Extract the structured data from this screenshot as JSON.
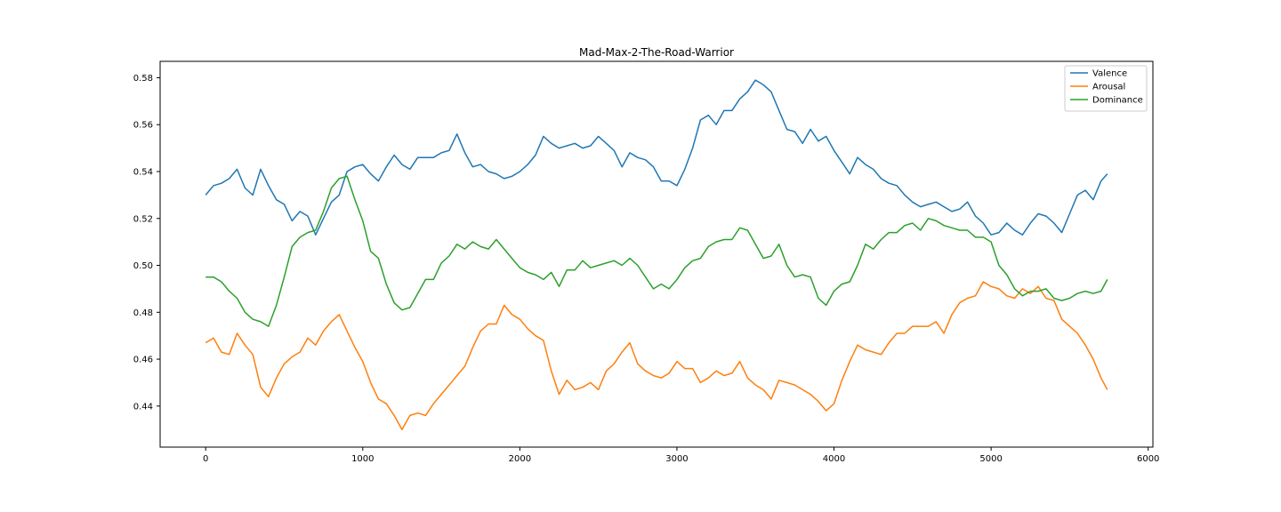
{
  "chart_data": {
    "type": "line",
    "title": "Mad-Max-2-The-Road-Warrior",
    "xlabel": "",
    "ylabel": "",
    "xlim": [
      -290,
      6030
    ],
    "ylim": [
      0.4225,
      0.587
    ],
    "xticks": [
      0,
      1000,
      2000,
      3000,
      4000,
      5000,
      6000
    ],
    "yticks": [
      0.44,
      0.46,
      0.48,
      0.5,
      0.52,
      0.54,
      0.56,
      0.58
    ],
    "ytick_labels": [
      "0.44",
      "0.46",
      "0.48",
      "0.50",
      "0.52",
      "0.54",
      "0.56",
      "0.58"
    ],
    "grid": false,
    "legend_position": "top-right",
    "series": [
      {
        "name": "Valence",
        "color": "#1f77b4",
        "x": [
          0,
          50,
          100,
          150,
          200,
          250,
          300,
          350,
          400,
          450,
          500,
          550,
          600,
          650,
          700,
          750,
          800,
          850,
          900,
          950,
          1000,
          1050,
          1100,
          1150,
          1200,
          1250,
          1300,
          1350,
          1400,
          1450,
          1500,
          1550,
          1600,
          1650,
          1700,
          1750,
          1800,
          1850,
          1900,
          1950,
          2000,
          2050,
          2100,
          2150,
          2200,
          2250,
          2300,
          2350,
          2400,
          2450,
          2500,
          2550,
          2600,
          2650,
          2700,
          2750,
          2800,
          2850,
          2900,
          2950,
          3000,
          3050,
          3100,
          3150,
          3200,
          3250,
          3300,
          3350,
          3400,
          3450,
          3500,
          3550,
          3600,
          3650,
          3700,
          3750,
          3800,
          3850,
          3900,
          3950,
          4000,
          4050,
          4100,
          4150,
          4200,
          4250,
          4300,
          4350,
          4400,
          4450,
          4500,
          4550,
          4600,
          4650,
          4700,
          4750,
          4800,
          4850,
          4900,
          4950,
          5000,
          5050,
          5100,
          5150,
          5200,
          5250,
          5300,
          5350,
          5400,
          5450,
          5500,
          5550,
          5600,
          5650,
          5700,
          5740
        ],
        "y": [
          0.53,
          0.534,
          0.535,
          0.537,
          0.541,
          0.533,
          0.53,
          0.541,
          0.534,
          0.528,
          0.526,
          0.519,
          0.523,
          0.521,
          0.513,
          0.52,
          0.527,
          0.53,
          0.54,
          0.542,
          0.543,
          0.539,
          0.536,
          0.542,
          0.547,
          0.543,
          0.541,
          0.546,
          0.546,
          0.546,
          0.548,
          0.549,
          0.556,
          0.548,
          0.542,
          0.543,
          0.54,
          0.539,
          0.537,
          0.538,
          0.54,
          0.543,
          0.547,
          0.555,
          0.552,
          0.55,
          0.551,
          0.552,
          0.55,
          0.551,
          0.555,
          0.552,
          0.549,
          0.542,
          0.548,
          0.546,
          0.545,
          0.542,
          0.536,
          0.536,
          0.534,
          0.541,
          0.55,
          0.562,
          0.564,
          0.56,
          0.566,
          0.566,
          0.571,
          0.574,
          0.579,
          0.577,
          0.574,
          0.566,
          0.558,
          0.557,
          0.552,
          0.558,
          0.553,
          0.555,
          0.549,
          0.544,
          0.539,
          0.546,
          0.543,
          0.541,
          0.537,
          0.535,
          0.534,
          0.53,
          0.527,
          0.525,
          0.526,
          0.527,
          0.525,
          0.523,
          0.524,
          0.527,
          0.521,
          0.518,
          0.513,
          0.514,
          0.518,
          0.515,
          0.513,
          0.518,
          0.522,
          0.521,
          0.518,
          0.514,
          0.522,
          0.53,
          0.532,
          0.528,
          0.536,
          0.539
        ]
      },
      {
        "name": "Arousal",
        "color": "#ff7f0e",
        "x": [
          0,
          50,
          100,
          150,
          200,
          250,
          300,
          350,
          400,
          450,
          500,
          550,
          600,
          650,
          700,
          750,
          800,
          850,
          900,
          950,
          1000,
          1050,
          1100,
          1150,
          1200,
          1250,
          1300,
          1350,
          1400,
          1450,
          1500,
          1550,
          1600,
          1650,
          1700,
          1750,
          1800,
          1850,
          1900,
          1950,
          2000,
          2050,
          2100,
          2150,
          2200,
          2250,
          2300,
          2350,
          2400,
          2450,
          2500,
          2550,
          2600,
          2650,
          2700,
          2750,
          2800,
          2850,
          2900,
          2950,
          3000,
          3050,
          3100,
          3150,
          3200,
          3250,
          3300,
          3350,
          3400,
          3450,
          3500,
          3550,
          3600,
          3650,
          3700,
          3750,
          3800,
          3850,
          3900,
          3950,
          4000,
          4050,
          4100,
          4150,
          4200,
          4250,
          4300,
          4350,
          4400,
          4450,
          4500,
          4550,
          4600,
          4650,
          4700,
          4750,
          4800,
          4850,
          4900,
          4950,
          5000,
          5050,
          5100,
          5150,
          5200,
          5250,
          5300,
          5350,
          5400,
          5450,
          5500,
          5550,
          5600,
          5650,
          5700,
          5740
        ],
        "y": [
          0.467,
          0.469,
          0.463,
          0.462,
          0.471,
          0.466,
          0.462,
          0.448,
          0.444,
          0.452,
          0.458,
          0.461,
          0.463,
          0.469,
          0.466,
          0.472,
          0.476,
          0.479,
          0.472,
          0.465,
          0.459,
          0.45,
          0.443,
          0.441,
          0.436,
          0.43,
          0.436,
          0.437,
          0.436,
          0.441,
          0.445,
          0.449,
          0.453,
          0.457,
          0.465,
          0.472,
          0.475,
          0.475,
          0.483,
          0.479,
          0.477,
          0.473,
          0.47,
          0.468,
          0.455,
          0.445,
          0.451,
          0.447,
          0.448,
          0.45,
          0.447,
          0.455,
          0.458,
          0.463,
          0.467,
          0.458,
          0.455,
          0.453,
          0.452,
          0.454,
          0.459,
          0.456,
          0.456,
          0.45,
          0.452,
          0.455,
          0.453,
          0.454,
          0.459,
          0.452,
          0.449,
          0.447,
          0.443,
          0.451,
          0.45,
          0.449,
          0.447,
          0.445,
          0.442,
          0.438,
          0.441,
          0.451,
          0.459,
          0.466,
          0.464,
          0.463,
          0.462,
          0.467,
          0.471,
          0.471,
          0.474,
          0.474,
          0.474,
          0.476,
          0.471,
          0.479,
          0.484,
          0.486,
          0.487,
          0.493,
          0.491,
          0.49,
          0.487,
          0.486,
          0.49,
          0.488,
          0.491,
          0.486,
          0.485,
          0.477,
          0.474,
          0.471,
          0.466,
          0.46,
          0.452,
          0.447
        ]
      },
      {
        "name": "Dominance",
        "color": "#2ca02c",
        "x": [
          0,
          50,
          100,
          150,
          200,
          250,
          300,
          350,
          400,
          450,
          500,
          550,
          600,
          650,
          700,
          750,
          800,
          850,
          900,
          950,
          1000,
          1050,
          1100,
          1150,
          1200,
          1250,
          1300,
          1350,
          1400,
          1450,
          1500,
          1550,
          1600,
          1650,
          1700,
          1750,
          1800,
          1850,
          1900,
          1950,
          2000,
          2050,
          2100,
          2150,
          2200,
          2250,
          2300,
          2350,
          2400,
          2450,
          2500,
          2550,
          2600,
          2650,
          2700,
          2750,
          2800,
          2850,
          2900,
          2950,
          3000,
          3050,
          3100,
          3150,
          3200,
          3250,
          3300,
          3350,
          3400,
          3450,
          3500,
          3550,
          3600,
          3650,
          3700,
          3750,
          3800,
          3850,
          3900,
          3950,
          4000,
          4050,
          4100,
          4150,
          4200,
          4250,
          4300,
          4350,
          4400,
          4450,
          4500,
          4550,
          4600,
          4650,
          4700,
          4750,
          4800,
          4850,
          4900,
          4950,
          5000,
          5050,
          5100,
          5150,
          5200,
          5250,
          5300,
          5350,
          5400,
          5450,
          5500,
          5550,
          5600,
          5650,
          5700,
          5740
        ],
        "y": [
          0.495,
          0.495,
          0.493,
          0.489,
          0.486,
          0.48,
          0.477,
          0.476,
          0.474,
          0.483,
          0.495,
          0.508,
          0.512,
          0.514,
          0.515,
          0.523,
          0.533,
          0.537,
          0.538,
          0.528,
          0.519,
          0.506,
          0.503,
          0.492,
          0.484,
          0.481,
          0.482,
          0.488,
          0.494,
          0.494,
          0.501,
          0.504,
          0.509,
          0.507,
          0.51,
          0.508,
          0.507,
          0.511,
          0.507,
          0.503,
          0.499,
          0.497,
          0.496,
          0.494,
          0.497,
          0.491,
          0.498,
          0.498,
          0.502,
          0.499,
          0.5,
          0.501,
          0.502,
          0.5,
          0.503,
          0.5,
          0.495,
          0.49,
          0.492,
          0.49,
          0.494,
          0.499,
          0.502,
          0.503,
          0.508,
          0.51,
          0.511,
          0.511,
          0.516,
          0.515,
          0.509,
          0.503,
          0.504,
          0.509,
          0.5,
          0.495,
          0.496,
          0.495,
          0.486,
          0.483,
          0.489,
          0.492,
          0.493,
          0.5,
          0.509,
          0.507,
          0.511,
          0.514,
          0.514,
          0.517,
          0.518,
          0.515,
          0.52,
          0.519,
          0.517,
          0.516,
          0.515,
          0.515,
          0.512,
          0.512,
          0.51,
          0.5,
          0.496,
          0.49,
          0.487,
          0.489,
          0.489,
          0.49,
          0.486,
          0.485,
          0.486,
          0.488,
          0.489,
          0.488,
          0.489,
          0.494
        ]
      }
    ]
  }
}
